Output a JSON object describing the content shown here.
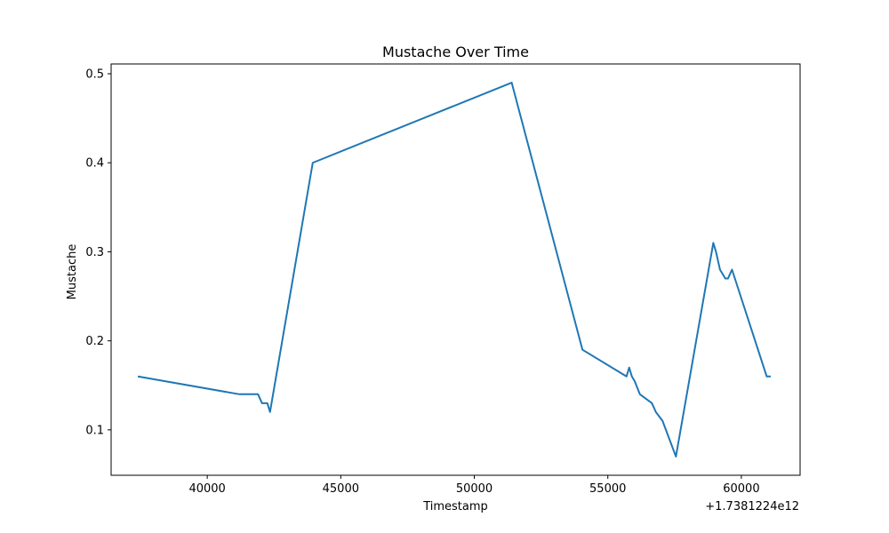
{
  "chart_data": {
    "type": "line",
    "title": "Mustache Over Time",
    "xlabel": "Timestamp",
    "ylabel": "Mustache",
    "x_offset_label": "+1.7381224e12",
    "xlim": [
      36400,
      62200
    ],
    "ylim": [
      0.049,
      0.511
    ],
    "x_ticks": [
      40000,
      45000,
      50000,
      55000,
      60000
    ],
    "y_ticks": [
      0.1,
      0.2,
      0.3,
      0.4,
      0.5
    ],
    "grid": false,
    "color": "#1f77b4",
    "series": [
      {
        "x": [
          37400,
          41200,
          41900,
          42050,
          42250,
          42350,
          43950,
          51400,
          54050,
          55700,
          55800,
          55900,
          56000,
          56200,
          56650,
          56800,
          57050,
          57550,
          58950,
          59050,
          59200,
          59400,
          59500,
          59650,
          60950,
          61100
        ],
        "y": [
          0.16,
          0.14,
          0.14,
          0.13,
          0.13,
          0.12,
          0.4,
          0.49,
          0.19,
          0.16,
          0.17,
          0.16,
          0.155,
          0.14,
          0.13,
          0.12,
          0.11,
          0.07,
          0.31,
          0.3,
          0.28,
          0.27,
          0.27,
          0.28,
          0.16,
          0.16
        ]
      }
    ]
  }
}
